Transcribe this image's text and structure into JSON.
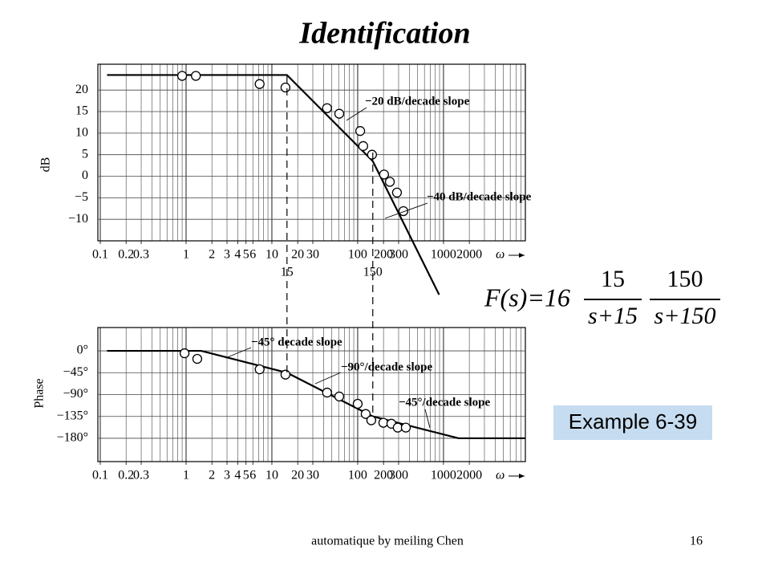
{
  "slide": {
    "title": "Identification",
    "example": "Example 6-39",
    "footer": "automatique by meiling Chen",
    "page": "16",
    "formula": {
      "lhs": "F(s)=16",
      "factors": [
        {
          "num": "15",
          "den": "s+15"
        },
        {
          "num": "150",
          "den": "s+150"
        }
      ]
    }
  },
  "chart_data": [
    {
      "type": "line",
      "y_label": "dB",
      "x_label": "ω",
      "xscale": "log",
      "grid": true,
      "xlim": [
        0.1,
        9000
      ],
      "ylim": [
        -15,
        26
      ],
      "xticks": [
        0.1,
        0.2,
        0.3,
        1,
        2,
        3,
        4,
        5,
        6,
        10,
        20,
        30,
        100,
        200,
        300,
        1000,
        2000
      ],
      "yticks": [
        20,
        15,
        10,
        5,
        0,
        {
          "value": -5,
          "label": "−5"
        },
        {
          "value": -10,
          "label": "−10"
        }
      ],
      "corner_frequencies": [
        15,
        150
      ],
      "series": [
        {
          "style": "line",
          "color": "#000000",
          "x": [
            0.12,
            15,
            150,
            890
          ],
          "values": [
            23.5,
            23.5,
            3.5,
            -27.5
          ]
        },
        {
          "style": "markers",
          "color": "#000000",
          "x": [
            0.9,
            1.3,
            7.2,
            14.4,
            44,
            61,
            107,
            116,
            147,
            203,
            237,
            287,
            341
          ],
          "values": [
            23.3,
            23.3,
            21.4,
            20.6,
            15.8,
            14.5,
            10.5,
            7.0,
            5.0,
            0.4,
            -1.3,
            -3.8,
            -8.1
          ]
        }
      ],
      "annotations": [
        "−20 dB/decade slope",
        "−40 dB/decade slope"
      ]
    },
    {
      "type": "line",
      "y_label": "Phase",
      "x_label": "ω",
      "xscale": "log",
      "grid": true,
      "xlim": [
        0.1,
        9000
      ],
      "ylim": [
        -228,
        48
      ],
      "xticks": [
        0.1,
        0.2,
        0.3,
        1,
        2,
        3,
        4,
        5,
        6,
        10,
        20,
        30,
        100,
        200,
        300,
        1000,
        2000
      ],
      "yticks": [
        {
          "value": 0,
          "label": "0°"
        },
        {
          "value": -45,
          "label": "−45°"
        },
        {
          "value": -90,
          "label": "−90°"
        },
        {
          "value": -135,
          "label": "−135°"
        },
        {
          "value": -180,
          "label": "−180°"
        }
      ],
      "series": [
        {
          "style": "line",
          "color": "#000000",
          "x": [
            0.12,
            1.5,
            15,
            150,
            1500,
            9000
          ],
          "values": [
            0,
            0,
            -45,
            -135,
            -180,
            -180
          ]
        },
        {
          "style": "markers",
          "color": "#000000",
          "x": [
            0.96,
            1.35,
            7.2,
            14.4,
            44,
            61,
            100,
            124,
            144,
            199,
            247,
            293,
            364
          ],
          "values": [
            -5,
            -16.5,
            -38,
            -49,
            -86,
            -94,
            -109,
            -130,
            -143,
            -148,
            -150,
            -158,
            -158
          ]
        }
      ],
      "annotations": [
        "−45° decade slope",
        "−90°/decade slope",
        "−45°/decade slope"
      ]
    }
  ]
}
